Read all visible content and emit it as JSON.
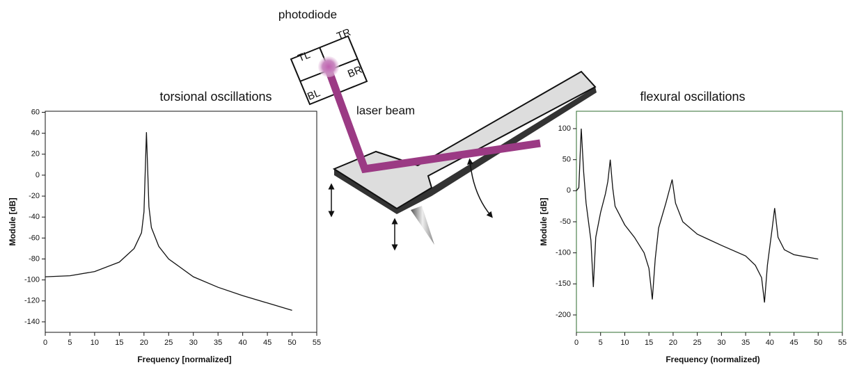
{
  "diagram": {
    "photodiode": "photodiode",
    "quadrants": [
      "TL",
      "TR",
      "BL",
      "BR"
    ],
    "laser": "laser beam"
  },
  "chart_data": [
    {
      "type": "line",
      "title": "torsional oscillations",
      "x_label": "Frequency [normalized]",
      "y_label": "Module [dB]",
      "x": [
        0,
        5,
        10,
        15,
        18,
        19.5,
        20,
        20.5,
        21,
        21.5,
        23,
        25,
        30,
        35,
        40,
        45,
        50
      ],
      "values": [
        -97,
        -96,
        -92,
        -83,
        -70,
        -55,
        -35,
        41,
        -30,
        -50,
        -68,
        -80,
        -97,
        -107,
        -115,
        -122,
        -129
      ],
      "color": "#111111",
      "xlim": [
        0,
        55
      ],
      "xticks": [
        0,
        5,
        10,
        15,
        20,
        25,
        30,
        35,
        40,
        45,
        50,
        55
      ],
      "ylim": [
        -150,
        61
      ],
      "yticks": [
        60,
        40,
        20,
        0,
        -20,
        -40,
        -60,
        -80,
        -100,
        -120,
        -140
      ]
    },
    {
      "type": "line",
      "title": "flexural oscillations",
      "x_label": "Frequency (normalized)",
      "y_label": "Module [dB]",
      "x": [
        0,
        0.5,
        1,
        1.5,
        2,
        3,
        3.5,
        4,
        5,
        6,
        6.5,
        7,
        7.5,
        8,
        10,
        12,
        14,
        15,
        15.7,
        16.3,
        17,
        18.5,
        19.8,
        20.5,
        22,
        25,
        30,
        35,
        37,
        38.3,
        38.9,
        39.5,
        40.5,
        41,
        41.7,
        43,
        45,
        50
      ],
      "values": [
        0,
        5,
        100,
        30,
        -20,
        -80,
        -155,
        -75,
        -35,
        -5,
        15,
        50,
        5,
        -25,
        -55,
        -75,
        -100,
        -125,
        -175,
        -110,
        -60,
        -20,
        18,
        -20,
        -50,
        -70,
        -88,
        -105,
        -120,
        -140,
        -180,
        -120,
        -60,
        -28,
        -75,
        -95,
        -103,
        -110
      ],
      "color": "#111111",
      "xlim": [
        0,
        55
      ],
      "xticks": [
        0,
        5,
        10,
        15,
        20,
        25,
        30,
        35,
        40,
        45,
        50,
        55
      ],
      "ylim": [
        -228,
        128
      ],
      "yticks": [
        100,
        50,
        0,
        -50,
        -100,
        -150,
        -200
      ]
    }
  ]
}
